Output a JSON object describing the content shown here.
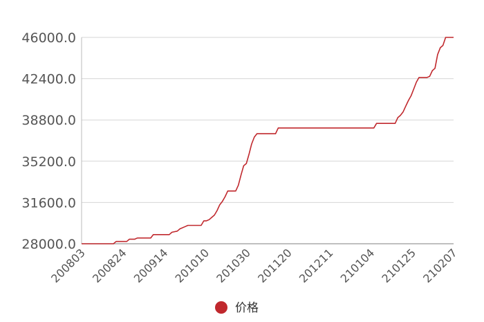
{
  "chart_data": {
    "type": "line",
    "title": "",
    "xlabel": "",
    "ylabel": "",
    "ylim": [
      28000,
      46000
    ],
    "y_ticks": [
      "46000.0",
      "42400.0",
      "38800.0",
      "35200.0",
      "31600.0",
      "28000.0"
    ],
    "y_tick_values": [
      46000,
      42400,
      38800,
      35200,
      31600,
      28000
    ],
    "x_ticks": [
      "200803",
      "200824",
      "200914",
      "201010",
      "201030",
      "201120",
      "201211",
      "210104",
      "210125",
      "210207"
    ],
    "grid": "horizontal",
    "legend_position": "bottom-center",
    "color": "#c0282d",
    "series": [
      {
        "name": "价格",
        "points": [
          [
            0,
            28000
          ],
          [
            2,
            28000
          ],
          [
            12,
            28000
          ],
          [
            13,
            28200
          ],
          [
            17,
            28200
          ],
          [
            18,
            28400
          ],
          [
            20,
            28400
          ],
          [
            21,
            28500
          ],
          [
            26,
            28500
          ],
          [
            27,
            28800
          ],
          [
            33,
            28800
          ],
          [
            34,
            29000
          ],
          [
            36,
            29100
          ],
          [
            37,
            29300
          ],
          [
            39,
            29500
          ],
          [
            40,
            29600
          ],
          [
            45,
            29600
          ],
          [
            46,
            30000
          ],
          [
            47,
            30000
          ],
          [
            48,
            30100
          ],
          [
            49,
            30300
          ],
          [
            50,
            30500
          ],
          [
            51,
            30900
          ],
          [
            52,
            31400
          ],
          [
            53,
            31700
          ],
          [
            54,
            32100
          ],
          [
            55,
            32600
          ],
          [
            58,
            32600
          ],
          [
            59,
            33100
          ],
          [
            60,
            34000
          ],
          [
            61,
            34800
          ],
          [
            62,
            35000
          ],
          [
            63,
            35800
          ],
          [
            64,
            36700
          ],
          [
            65,
            37300
          ],
          [
            66,
            37600
          ],
          [
            73,
            37600
          ],
          [
            74,
            38100
          ],
          [
            110,
            38100
          ],
          [
            111,
            38500
          ],
          [
            118,
            38500
          ],
          [
            119,
            39000
          ],
          [
            120,
            39200
          ],
          [
            121,
            39500
          ],
          [
            122,
            40000
          ],
          [
            123,
            40500
          ],
          [
            124,
            40900
          ],
          [
            125,
            41500
          ],
          [
            126,
            42100
          ],
          [
            127,
            42500
          ],
          [
            130,
            42500
          ],
          [
            131,
            42600
          ],
          [
            132,
            43100
          ],
          [
            133,
            43300
          ],
          [
            134,
            44500
          ],
          [
            135,
            45100
          ],
          [
            136,
            45300
          ],
          [
            137,
            46000
          ],
          [
            140,
            46000
          ]
        ]
      }
    ]
  }
}
